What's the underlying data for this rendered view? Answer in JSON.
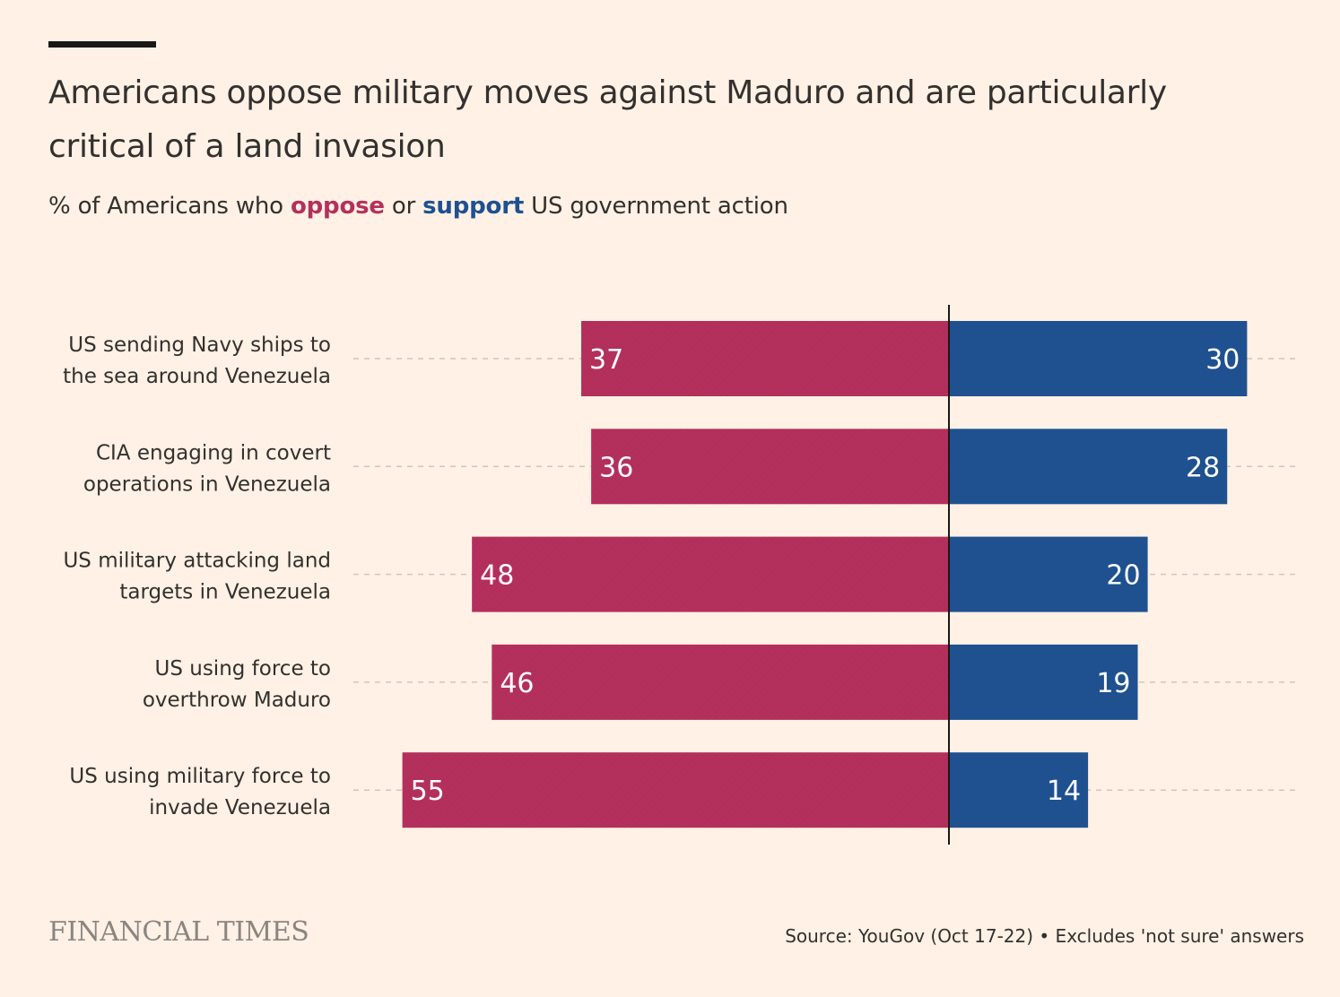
{
  "title": "Americans oppose military moves against Maduro and are particularly critical of a land invasion",
  "subtitle": {
    "prefix": "% of Americans who ",
    "oppose": "oppose",
    "middle": " or ",
    "support": "support",
    "suffix": " US government action"
  },
  "brand": "FINANCIAL TIMES",
  "source": "Source: YouGov (Oct 17-22) • Excludes 'not sure' answers",
  "colors": {
    "oppose": "#b4305c",
    "support": "#1f5190",
    "background": "#fff1e5",
    "text": "#33302e"
  },
  "chart_data": {
    "type": "bar",
    "orientation": "horizontal-diverging",
    "categories": [
      [
        "US sending Navy ships to",
        "the sea around Venezuela"
      ],
      [
        "CIA engaging in covert",
        "operations in Venezuela"
      ],
      [
        "US military attacking land",
        "targets in Venezuela"
      ],
      [
        "US using force to",
        "overthrow Maduro"
      ],
      [
        "US using military force to",
        "invade Venezuela"
      ]
    ],
    "series": [
      {
        "name": "oppose",
        "values": [
          37,
          36,
          48,
          46,
          55
        ]
      },
      {
        "name": "support",
        "values": [
          30,
          28,
          20,
          19,
          14
        ]
      }
    ],
    "xlim": [
      -55,
      35
    ],
    "grid": false,
    "legend": "in subtitle"
  }
}
